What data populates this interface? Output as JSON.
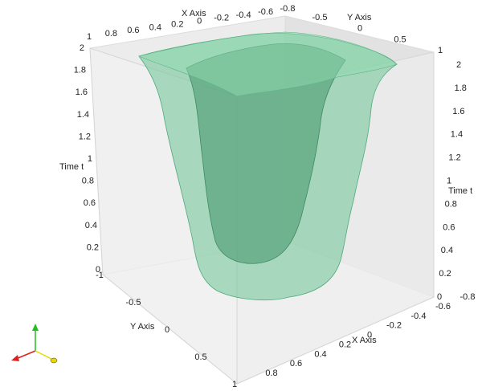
{
  "axes": {
    "x_title": "X Axis",
    "y_title": "Y Axis",
    "t_title": "Time t",
    "x_ticks_top": [
      "1",
      "0.8",
      "0.6",
      "0.4",
      "0.2",
      "0",
      "-0.2",
      "-0.4",
      "-0.6",
      "-0.8"
    ],
    "y_ticks_top": [
      "-0.5",
      "0",
      "0.5",
      "1"
    ],
    "t_ticks_left": [
      "2",
      "1.8",
      "1.6",
      "1.4",
      "1.2",
      "1",
      "0.8",
      "0.6",
      "0.4",
      "0.2",
      "0"
    ],
    "t_ticks_right": [
      "2",
      "1.8",
      "1.6",
      "1.4",
      "1.2",
      "1",
      "0.8",
      "0.6",
      "0.4",
      "0.2",
      "0"
    ],
    "y_ticks_bottom": [
      "-1",
      "-0.5",
      "0",
      "0.5",
      "1"
    ],
    "x_ticks_bottom": [
      "0.8",
      "0.6",
      "0.4",
      "0.2",
      "0",
      "-0.2",
      "-0.4",
      "-0.6",
      "-0.8"
    ]
  },
  "colors": {
    "surface_outer": "#6cc496",
    "surface_inner": "#4a9a70",
    "box_face": "#e8e8e8",
    "orientation_x": "#e02020",
    "orientation_y": "#e6d800",
    "orientation_z": "#20c020"
  }
}
